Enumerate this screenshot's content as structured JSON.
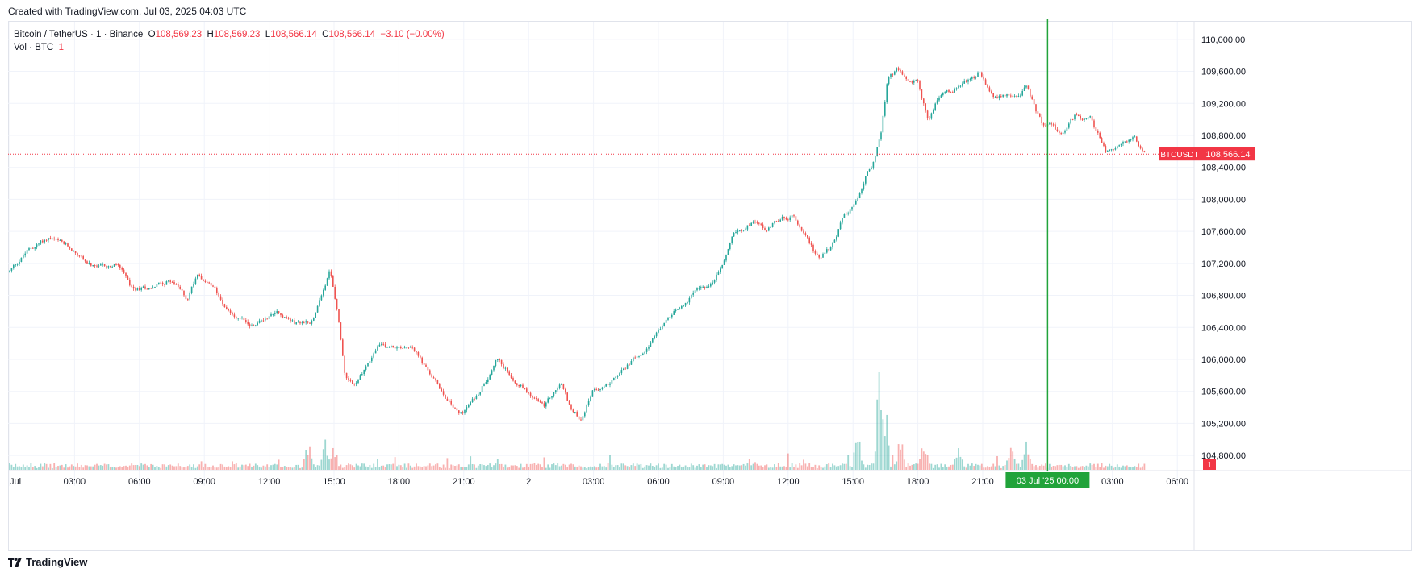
{
  "header": {
    "created_text": "Created with TradingView.com, Jul 03, 2025 04:03 UTC"
  },
  "legend": {
    "symbol": "Bitcoin / TetherUS · 1 · Binance",
    "o_label": "O",
    "o_value": "108,569.23",
    "h_label": "H",
    "h_value": "108,569.23",
    "l_label": "L",
    "l_value": "108,566.14",
    "c_label": "C",
    "c_value": "108,566.14",
    "change": "−3.10 (−0.00%)",
    "vol_label": "Vol · BTC",
    "vol_value": "1"
  },
  "footer": {
    "brand": "TradingView"
  },
  "colors": {
    "up": "#26a69a",
    "down": "#ef5350",
    "crosshair": "#21a33a",
    "grid": "#f0f3fa",
    "last_price": "#f23645"
  },
  "chart_data": {
    "type": "candlestick",
    "symbol": "BTCUSDT",
    "last_price": 108566.14,
    "last_price_label": "108,566.14",
    "ylim": [
      104600,
      110300
    ],
    "y_ticks": [
      104800,
      105200,
      105600,
      106000,
      106400,
      106800,
      107200,
      107600,
      108000,
      108400,
      108800,
      109200,
      109600,
      110000
    ],
    "y_tick_labels": [
      "104,800.00",
      "105,200.00",
      "105,600.00",
      "106,000.00",
      "106,400.00",
      "106,800.00",
      "107,200.00",
      "107,600.00",
      "108,000.00",
      "108,400.00",
      "108,800.00",
      "109,200.00",
      "109,600.00",
      "110,000.00"
    ],
    "x_range_hours": [
      0,
      52.5
    ],
    "x_ticks_hours": [
      0,
      3,
      6,
      9,
      12,
      15,
      18,
      21,
      24,
      27,
      30,
      33,
      36,
      39,
      42,
      45,
      48,
      51,
      54
    ],
    "x_tick_labels": [
      "Jul",
      "03:00",
      "06:00",
      "09:00",
      "12:00",
      "15:00",
      "18:00",
      "21:00",
      "2",
      "03:00",
      "06:00",
      "09:00",
      "12:00",
      "15:00",
      "18:00",
      "21:00",
      "",
      "03:00",
      "06:00"
    ],
    "crosshair": {
      "x_hours": 48,
      "label": "03 Jul '25   00:00"
    },
    "volume_badge": "1",
    "price_path": [
      [
        0,
        107100
      ],
      [
        0.8,
        107350
      ],
      [
        1.8,
        107520
      ],
      [
        3,
        107350
      ],
      [
        4,
        107120
      ],
      [
        5,
        107180
      ],
      [
        5.7,
        106850
      ],
      [
        6.5,
        106900
      ],
      [
        7.5,
        107000
      ],
      [
        8.2,
        106750
      ],
      [
        8.7,
        107100
      ],
      [
        9.5,
        106850
      ],
      [
        10.5,
        106500
      ],
      [
        11.3,
        106420
      ],
      [
        12.4,
        106620
      ],
      [
        13.2,
        106450
      ],
      [
        14,
        106500
      ],
      [
        14.5,
        106900
      ],
      [
        14.8,
        107100
      ],
      [
        15.2,
        106500
      ],
      [
        15.5,
        105800
      ],
      [
        16,
        105700
      ],
      [
        17,
        106150
      ],
      [
        18,
        106150
      ],
      [
        18.6,
        106200
      ],
      [
        19.2,
        105900
      ],
      [
        20,
        105600
      ],
      [
        20.8,
        105300
      ],
      [
        21.5,
        105500
      ],
      [
        22.5,
        106000
      ],
      [
        23.2,
        105800
      ],
      [
        24,
        105600
      ],
      [
        24.7,
        105400
      ],
      [
        25.5,
        105700
      ],
      [
        26,
        105350
      ],
      [
        26.4,
        105250
      ],
      [
        27,
        105650
      ],
      [
        27.8,
        105700
      ],
      [
        28.5,
        105900
      ],
      [
        29.5,
        106200
      ],
      [
        30.5,
        106500
      ],
      [
        31.5,
        106800
      ],
      [
        32.5,
        106950
      ],
      [
        33,
        107200
      ],
      [
        33.5,
        107600
      ],
      [
        34.5,
        107750
      ],
      [
        35,
        107600
      ],
      [
        35.5,
        107750
      ],
      [
        36.2,
        107800
      ],
      [
        36.8,
        107600
      ],
      [
        37.4,
        107250
      ],
      [
        38,
        107400
      ],
      [
        38.6,
        107800
      ],
      [
        39.2,
        108000
      ],
      [
        39.6,
        108300
      ],
      [
        40,
        108500
      ],
      [
        40.3,
        108800
      ],
      [
        40.6,
        109500
      ],
      [
        41,
        109600
      ],
      [
        41.5,
        109450
      ],
      [
        42,
        109500
      ],
      [
        42.5,
        108950
      ],
      [
        43,
        109300
      ],
      [
        44,
        109400
      ],
      [
        44.8,
        109600
      ],
      [
        45.5,
        109250
      ],
      [
        46.5,
        109300
      ],
      [
        47,
        109400
      ],
      [
        47.8,
        108900
      ],
      [
        48.2,
        108950
      ],
      [
        48.6,
        108800
      ],
      [
        49.3,
        109050
      ],
      [
        50,
        109000
      ],
      [
        50.7,
        108600
      ],
      [
        51.5,
        108700
      ],
      [
        52,
        108750
      ],
      [
        52.45,
        108566
      ]
    ]
  }
}
